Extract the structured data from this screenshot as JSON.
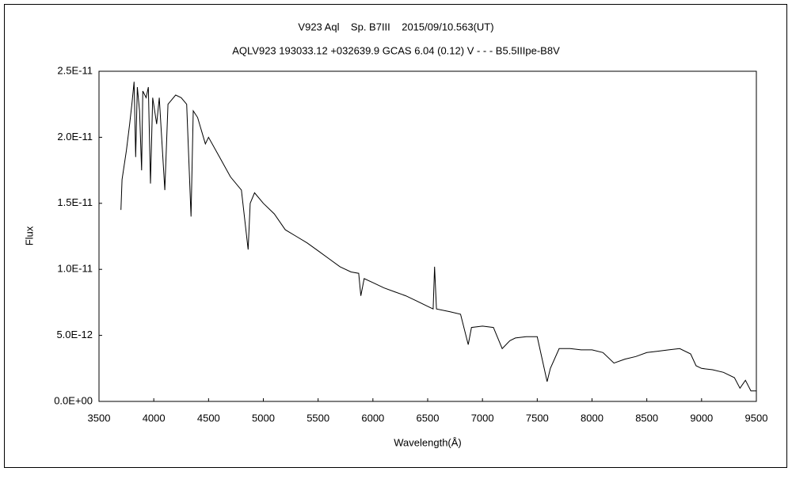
{
  "chart_data": {
    "type": "line",
    "title": "V923 Aql    Sp. B7III    2015/09/10.563(UT)",
    "subtitle": "AQLV923 193033.12 +032639.9 GCAS 6.04 (0.12) V - - - B5.5IIIpe-B8V",
    "x_label": "Wavelength(Å)",
    "y_label": "Flux",
    "color": "#000000",
    "x": [
      3700,
      3710,
      3750,
      3780,
      3800,
      3820,
      3835,
      3850,
      3870,
      3889,
      3900,
      3930,
      3950,
      3970,
      3990,
      4026,
      4050,
      4101,
      4130,
      4200,
      4250,
      4300,
      4340,
      4360,
      4400,
      4471,
      4500,
      4600,
      4700,
      4800,
      4861,
      4880,
      4920,
      5000,
      5100,
      5200,
      5300,
      5400,
      5500,
      5600,
      5700,
      5800,
      5870,
      5890,
      5920,
      6000,
      6100,
      6200,
      6300,
      6400,
      6500,
      6550,
      6563,
      6580,
      6700,
      6800,
      6870,
      6900,
      7000,
      7100,
      7180,
      7250,
      7300,
      7400,
      7500,
      7590,
      7620,
      7700,
      7800,
      7900,
      8000,
      8100,
      8200,
      8300,
      8400,
      8500,
      8600,
      8700,
      8800,
      8900,
      8950,
      9000,
      9100,
      9200,
      9300,
      9350,
      9400,
      9450,
      9500
    ],
    "values": [
      1.45e-11,
      1.68e-11,
      1.9e-11,
      2.1e-11,
      2.25e-11,
      2.42e-11,
      1.85e-11,
      2.38e-11,
      2.2e-11,
      1.75e-11,
      2.35e-11,
      2.3e-11,
      2.38e-11,
      1.65e-11,
      2.3e-11,
      2.1e-11,
      2.3e-11,
      1.6e-11,
      2.25e-11,
      2.32e-11,
      2.3e-11,
      2.25e-11,
      1.4e-11,
      2.2e-11,
      2.15e-11,
      1.95e-11,
      2e-11,
      1.85e-11,
      1.7e-11,
      1.6e-11,
      1.15e-11,
      1.5e-11,
      1.58e-11,
      1.5e-11,
      1.42e-11,
      1.3e-11,
      1.25e-11,
      1.2e-11,
      1.14e-11,
      1.08e-11,
      1.02e-11,
      9.8e-12,
      9.7e-12,
      8e-12,
      9.3e-12,
      9e-12,
      8.6e-12,
      8.3e-12,
      8e-12,
      7.6e-12,
      7.2e-12,
      7e-12,
      1.02e-11,
      7e-12,
      6.8e-12,
      6.6e-12,
      4.3e-12,
      5.6e-12,
      5.7e-12,
      5.6e-12,
      4e-12,
      4.6e-12,
      4.8e-12,
      4.9e-12,
      4.9e-12,
      1.5e-12,
      2.5e-12,
      4e-12,
      4e-12,
      3.9e-12,
      3.9e-12,
      3.7e-12,
      2.9e-12,
      3.2e-12,
      3.4e-12,
      3.7e-12,
      3.8e-12,
      3.9e-12,
      4e-12,
      3.6e-12,
      2.7e-12,
      2.5e-12,
      2.4e-12,
      2.2e-12,
      1.8e-12,
      1e-12,
      1.6e-12,
      8e-13,
      8e-13
    ],
    "xlim": [
      3500,
      9500
    ],
    "xticks": [
      3500,
      4000,
      4500,
      5000,
      5500,
      6000,
      6500,
      7000,
      7500,
      8000,
      8500,
      9000,
      9500
    ],
    "ylim": [
      0,
      2.5e-11
    ],
    "yticks": [
      {
        "value": 0,
        "label": "0.0E+00"
      },
      {
        "value": 5e-12,
        "label": "5.0E-12"
      },
      {
        "value": 1e-11,
        "label": "1.0E-11"
      },
      {
        "value": 1.5e-11,
        "label": "1.5E-11"
      },
      {
        "value": 2e-11,
        "label": "2.0E-11"
      },
      {
        "value": 2.5e-11,
        "label": "2.5E-11"
      }
    ],
    "grid": false
  }
}
